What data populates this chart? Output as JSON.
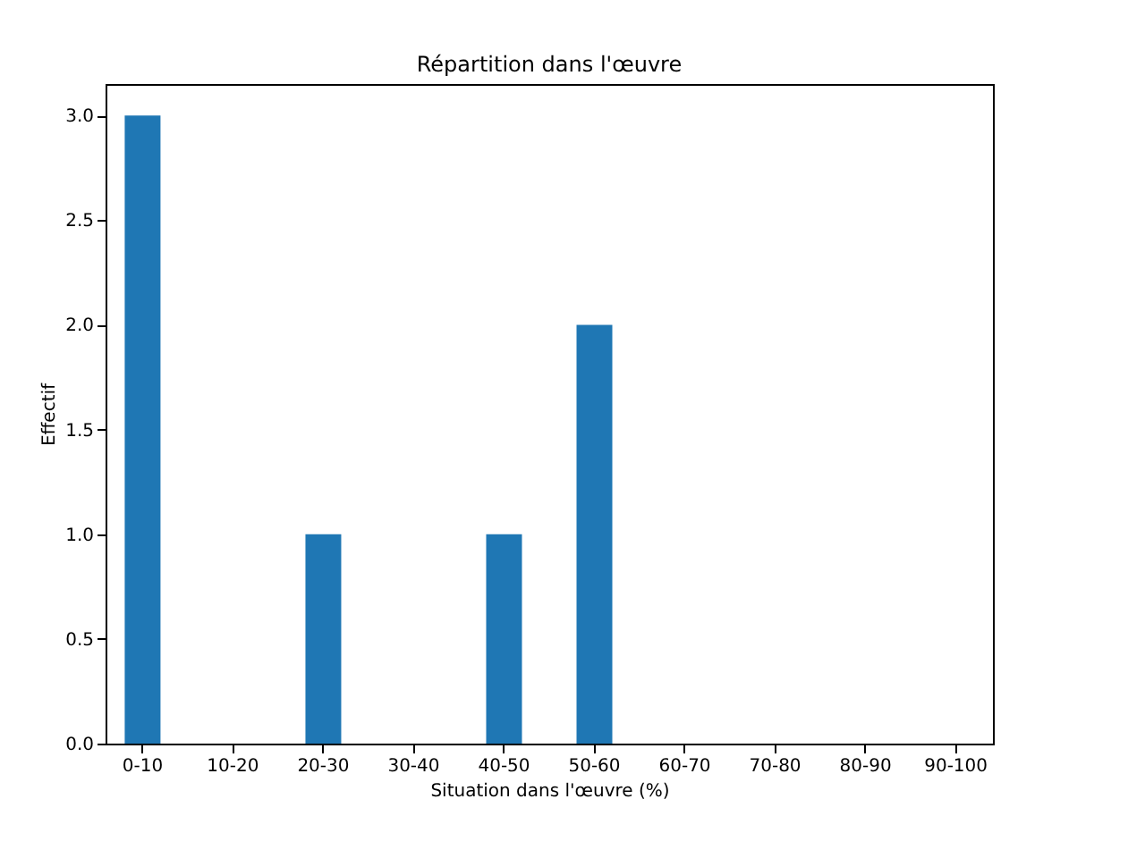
{
  "chart_data": {
    "type": "bar",
    "title": "Répartition dans l'œuvre",
    "xlabel": "Situation dans l'œuvre (%)",
    "ylabel": "Effectif",
    "categories": [
      "0-10",
      "10-20",
      "20-30",
      "30-40",
      "40-50",
      "50-60",
      "60-70",
      "70-80",
      "80-90",
      "90-100"
    ],
    "values": [
      3,
      0,
      1,
      0,
      1,
      2,
      0,
      0,
      0,
      0
    ],
    "color": "#1f77b4",
    "ylim": [
      0,
      3.15
    ],
    "yticks": [
      {
        "value": 0,
        "label": "0.0"
      },
      {
        "value": 0.5,
        "label": "0.5"
      },
      {
        "value": 1,
        "label": "1.0"
      },
      {
        "value": 1.5,
        "label": "1.5"
      },
      {
        "value": 2,
        "label": "2.0"
      },
      {
        "value": 2.5,
        "label": "2.5"
      },
      {
        "value": 3,
        "label": "3.0"
      }
    ],
    "grid": false
  }
}
